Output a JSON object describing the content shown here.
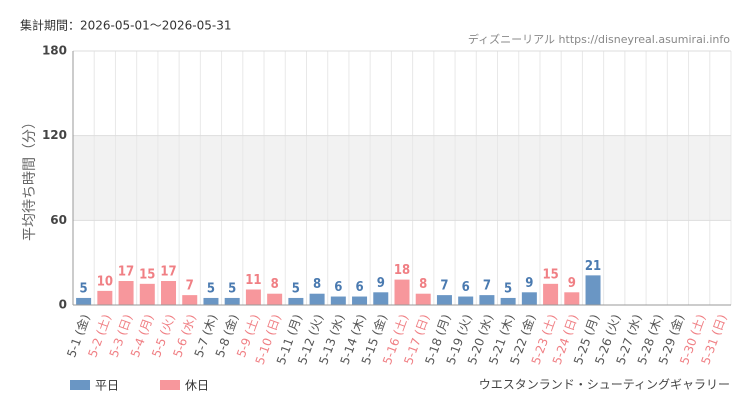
{
  "chart_data": {
    "type": "bar",
    "period": "集計期間：2026-05-01〜2026-05-31",
    "source": "ディズニーリアル https://disneyreal.asumirai.info",
    "y_label": "平均待ち時間（分）",
    "attraction": "ウエスタンランド・シューティングギャラリー",
    "categories": [
      "5-1 (金)",
      "5-2 (土)",
      "5-3 (日)",
      "5-4 (月)",
      "5-5 (火)",
      "5-6 (水)",
      "5-7 (木)",
      "5-8 (金)",
      "5-9 (土)",
      "5-10 (日)",
      "5-11 (月)",
      "5-12 (火)",
      "5-13 (水)",
      "5-14 (木)",
      "5-15 (金)",
      "5-16 (土)",
      "5-17 (日)",
      "5-18 (月)",
      "5-19 (火)",
      "5-20 (水)",
      "5-21 (木)",
      "5-22 (金)",
      "5-23 (土)",
      "5-24 (日)",
      "5-25 (月)",
      "5-26 (火)",
      "5-27 (水)",
      "5-28 (木)",
      "5-29 (金)",
      "5-30 (土)",
      "5-31 (日)"
    ],
    "category_label_colors": [
      "#555",
      "#f07f84",
      "#f07f84",
      "#f07f84",
      "#f07f84",
      "#f07f84",
      "#555",
      "#555",
      "#f07f84",
      "#f07f84",
      "#555",
      "#555",
      "#555",
      "#555",
      "#555",
      "#f07f84",
      "#f07f84",
      "#555",
      "#555",
      "#555",
      "#555",
      "#555",
      "#f07f84",
      "#f07f84",
      "#555",
      "#555",
      "#555",
      "#555",
      "#555",
      "#f07f84",
      "#f07f84"
    ],
    "series": [
      {
        "name": "平日",
        "color": "#6a96c4",
        "label_color": "#4a7ab0",
        "values": [
          5,
          null,
          null,
          null,
          null,
          null,
          5,
          5,
          null,
          null,
          5,
          8,
          6,
          6,
          9,
          null,
          null,
          7,
          6,
          7,
          5,
          9,
          null,
          null,
          21,
          null,
          null,
          null,
          null,
          null,
          null
        ]
      },
      {
        "name": "休日",
        "color": "#f7979c",
        "label_color": "#f07f84",
        "values": [
          null,
          10,
          17,
          15,
          17,
          7,
          null,
          null,
          11,
          8,
          null,
          null,
          null,
          null,
          null,
          18,
          8,
          null,
          null,
          null,
          null,
          null,
          15,
          9,
          null,
          null,
          null,
          null,
          null,
          null,
          null
        ]
      }
    ],
    "ylim": [
      0,
      180
    ],
    "yticks": [
      0,
      60,
      120,
      180
    ],
    "grid": true
  }
}
